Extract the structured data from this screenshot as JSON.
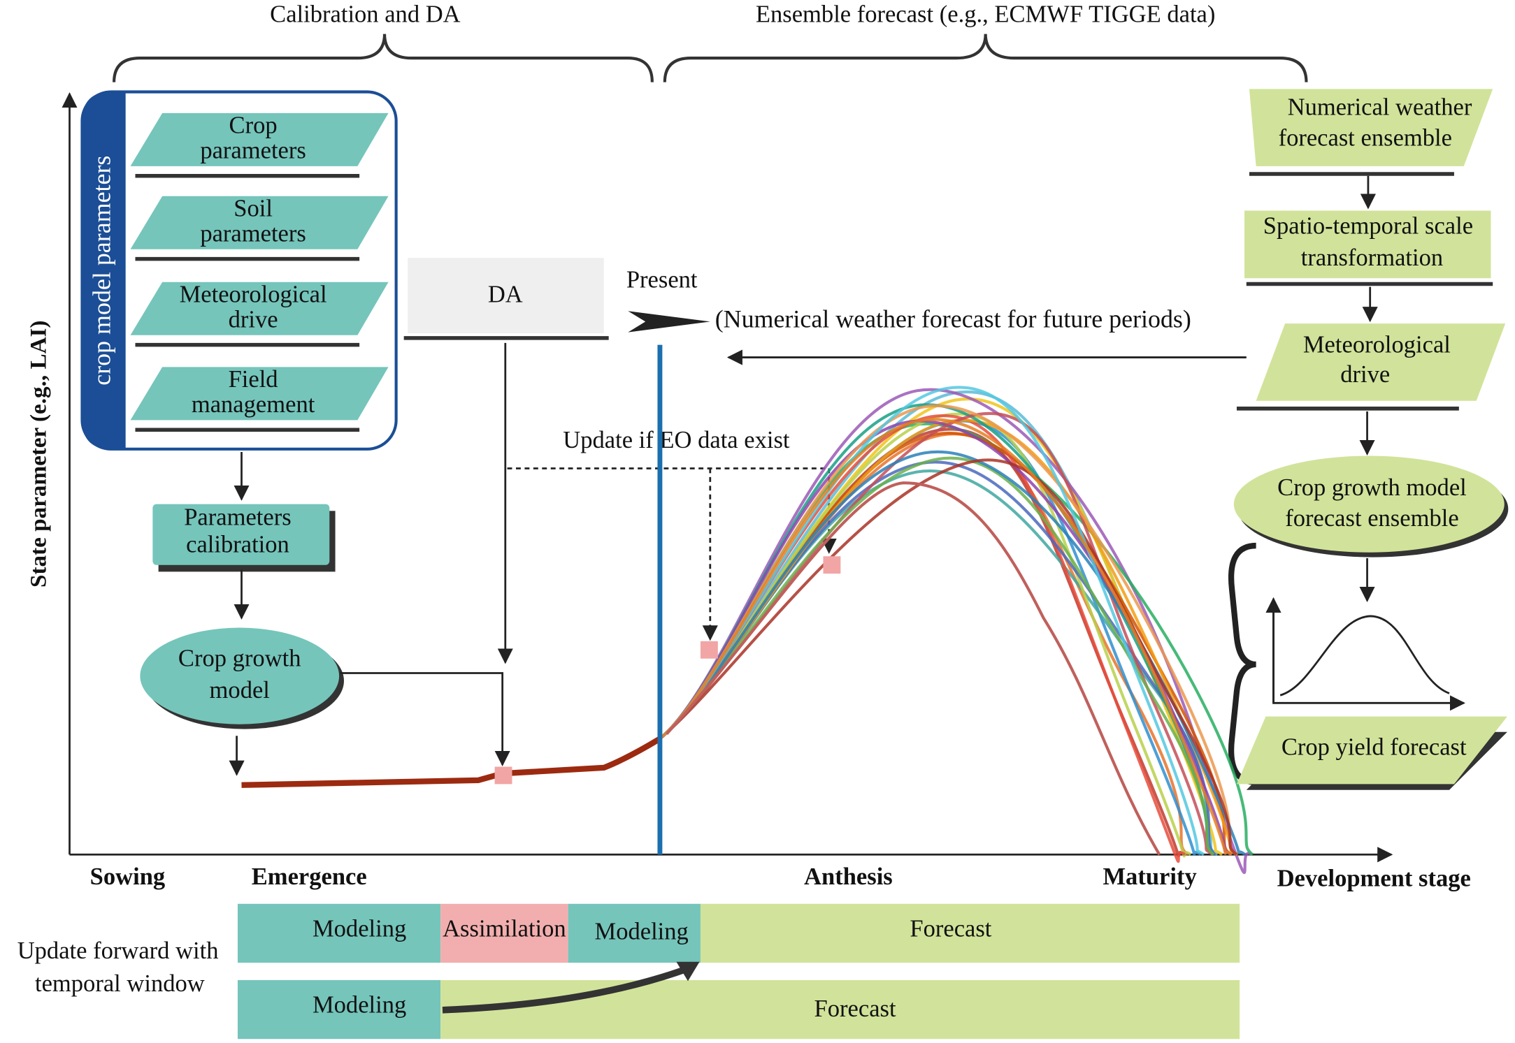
{
  "header": {
    "calibration": "Calibration and DA",
    "ensemble": "Ensemble forecast (e.g., ECMWF TIGGE data)"
  },
  "axes": {
    "y_label": "State parameter (e.g., LAI)",
    "x_label": "Development stage",
    "stages": [
      "Sowing",
      "Emergence",
      "Anthesis",
      "Maturity"
    ]
  },
  "parameters": {
    "title": "crop model parameters",
    "items": [
      [
        "Crop",
        "parameters"
      ],
      [
        "Soil",
        "parameters"
      ],
      [
        "Meteorological",
        "drive"
      ],
      [
        "Field",
        "management"
      ]
    ]
  },
  "left_flow": {
    "calibration": [
      "Parameters",
      "calibration"
    ],
    "model": [
      "Crop growth",
      "model"
    ]
  },
  "middle": {
    "da": "DA",
    "present": "Present",
    "future_note": "(Numerical weather forecast for future periods)",
    "update_note": "Update if EO data exist"
  },
  "right_flow": {
    "nodes": [
      [
        "Numerical weather",
        "forecast ensemble"
      ],
      [
        "Spatio-temporal scale",
        "transformation"
      ],
      [
        "Meteorological",
        "drive"
      ],
      [
        "Crop growth model",
        "forecast ensemble"
      ],
      [
        "Crop yield forecast"
      ]
    ]
  },
  "timeline": {
    "label": [
      "Update forward with",
      "temporal window"
    ],
    "row1": [
      "Modeling",
      "Assimilation",
      "Modeling",
      "Forecast"
    ],
    "row2": [
      "Modeling",
      "Forecast"
    ]
  }
}
